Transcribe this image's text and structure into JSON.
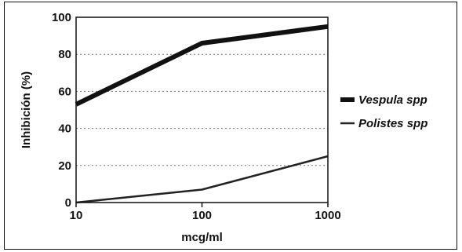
{
  "chart_data": {
    "type": "line",
    "title": "",
    "xlabel": "mcg/ml",
    "ylabel": "Inhibición (%)",
    "x_scale": "log",
    "x": [
      10,
      100,
      1000
    ],
    "x_tick_labels": [
      "10",
      "100",
      "1000"
    ],
    "xlim": [
      10,
      1000
    ],
    "y_ticks": [
      0,
      20,
      40,
      60,
      80,
      100
    ],
    "y_tick_labels": [
      "0",
      "20",
      "40",
      "60",
      "80",
      "100"
    ],
    "ylim": [
      0,
      100
    ],
    "grid": "horizontal dotted",
    "legend_position": "right",
    "series": [
      {
        "name": "Vespula spp",
        "values": [
          53,
          86,
          95
        ],
        "color": "#111111",
        "weight": "thick"
      },
      {
        "name": "Polistes spp",
        "values": [
          0,
          7,
          25
        ],
        "color": "#222222",
        "weight": "thin"
      }
    ]
  }
}
